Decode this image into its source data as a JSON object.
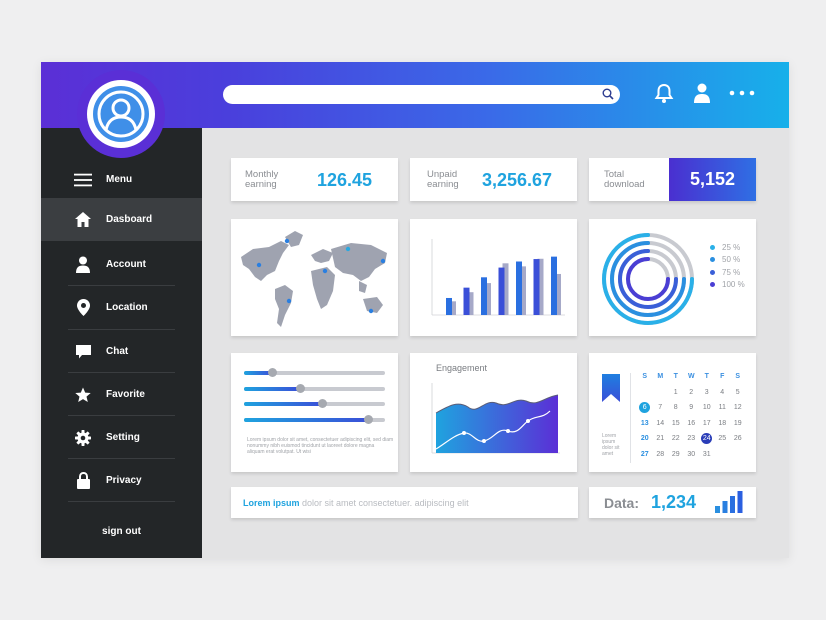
{
  "sidebar": {
    "items": [
      {
        "label": "Menu",
        "icon": "hamburger-icon"
      },
      {
        "label": "Dasboard",
        "icon": "home-icon",
        "active": true
      },
      {
        "label": "Account",
        "icon": "user-icon"
      },
      {
        "label": "Location",
        "icon": "location-pin-icon"
      },
      {
        "label": "Chat",
        "icon": "chat-icon"
      },
      {
        "label": "Favorite",
        "icon": "star-icon"
      },
      {
        "label": "Setting",
        "icon": "gear-icon"
      },
      {
        "label": "Privacy",
        "icon": "lock-icon"
      }
    ],
    "signout": "sign out"
  },
  "stats": {
    "monthly": {
      "label_l1": "Monthly",
      "label_l2": "earning",
      "value": "126.45"
    },
    "unpaid": {
      "label_l1": "Unpaid",
      "label_l2": "earning",
      "value": "3,256.67"
    },
    "total": {
      "label_l1": "Total",
      "label_l2": "download",
      "value": "5,152"
    }
  },
  "donut_legend": [
    "25 %",
    "50 %",
    "75 %",
    "100 %"
  ],
  "bar_chart": {
    "series": [
      {
        "values": [
          28,
          45,
          62,
          78,
          88,
          92,
          96
        ]
      },
      {
        "values": [
          18,
          30,
          42,
          68,
          64,
          74,
          54
        ]
      }
    ]
  },
  "engagement": {
    "title": "Engagement"
  },
  "sliders": {
    "values": [
      0.2,
      0.4,
      0.55,
      0.88
    ],
    "caption_l1": "Lorem ipsum dolor sit amet, consectetuer adipiscing elit, sed diam",
    "caption_l2": "nonummy nibh euismod tincidunt ut laoreet dolore magna",
    "caption_l3": "aliquam erat volutpat. Ut wisi"
  },
  "calendar": {
    "headers": [
      "S",
      "M",
      "T",
      "W",
      "T",
      "F",
      "S"
    ],
    "caption_l1": "Lorem",
    "caption_l2": "ipsum",
    "caption_l3": "dolor sit",
    "caption_l4": "amet"
  },
  "footer": {
    "lorem_bold": "Lorem ipsum",
    "lorem_rest": " dolor sit amet consectetuer. adipiscing elit",
    "data_label": "Data:",
    "data_value": "1,234"
  },
  "colors": {
    "accent": "#1fa3df",
    "purple": "#5b2fd6",
    "sidebar": "#232628"
  }
}
